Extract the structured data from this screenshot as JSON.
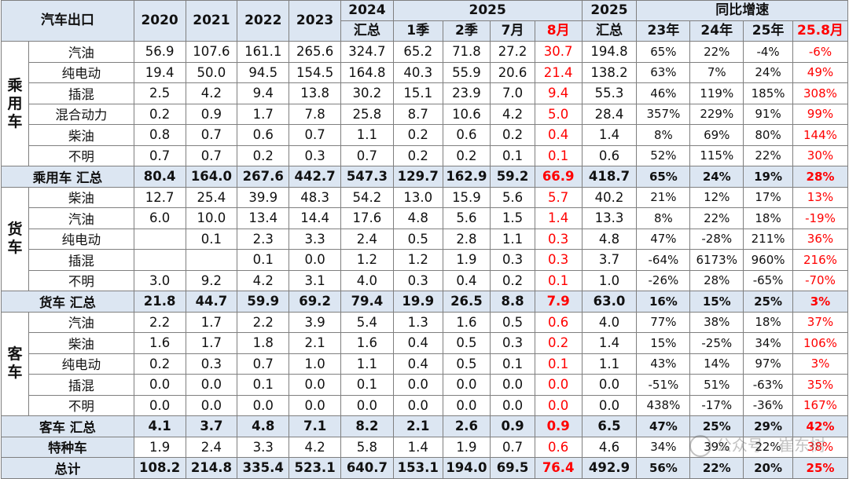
{
  "chart_data": {
    "type": "table",
    "corner_label": "汽车出口",
    "columns": [
      {
        "top": "2020",
        "bottom": ""
      },
      {
        "top": "2021",
        "bottom": ""
      },
      {
        "top": "2022",
        "bottom": ""
      },
      {
        "top": "2023",
        "bottom": ""
      },
      {
        "top": "2024",
        "bottom": "汇总"
      },
      {
        "top": "2025",
        "bottom": "1季",
        "span": 4
      },
      {
        "top": "",
        "bottom": "2季"
      },
      {
        "top": "",
        "bottom": "7月"
      },
      {
        "top": "",
        "bottom": "8月",
        "highlight": true
      },
      {
        "top": "2025",
        "bottom": "汇总"
      },
      {
        "top": "同比增速",
        "bottom": "23年",
        "span": 4
      },
      {
        "top": "",
        "bottom": "24年"
      },
      {
        "top": "",
        "bottom": "25年"
      },
      {
        "top": "",
        "bottom": "25.8月",
        "highlight": true
      }
    ],
    "highlight_color": "#ff0000",
    "total_row_color": "#dce6f2",
    "groups": [
      {
        "label": "乘用车",
        "rows": [
          {
            "name": "汽油",
            "values": [
              "56.9",
              "107.6",
              "161.1",
              "265.6",
              "324.7",
              "65.2",
              "71.8",
              "27.2",
              "30.7",
              "194.8",
              "65%",
              "22%",
              "-4%",
              "-6%"
            ]
          },
          {
            "name": "纯电动",
            "values": [
              "19.4",
              "50.0",
              "94.5",
              "154.5",
              "164.8",
              "40.3",
              "55.9",
              "20.6",
              "21.4",
              "138.2",
              "63%",
              "7%",
              "24%",
              "49%"
            ]
          },
          {
            "name": "插混",
            "values": [
              "2.5",
              "4.2",
              "9.4",
              "13.8",
              "30.2",
              "15.1",
              "23.9",
              "7.0",
              "9.4",
              "55.3",
              "46%",
              "119%",
              "185%",
              "308%"
            ]
          },
          {
            "name": "混合动力",
            "values": [
              "0.2",
              "0.9",
              "1.7",
              "7.8",
              "25.8",
              "8.7",
              "10.6",
              "4.2",
              "5.0",
              "28.4",
              "357%",
              "229%",
              "91%",
              "99%"
            ]
          },
          {
            "name": "柴油",
            "values": [
              "0.8",
              "0.7",
              "0.6",
              "0.7",
              "1.1",
              "0.2",
              "0.6",
              "0.2",
              "0.4",
              "1.4",
              "8%",
              "69%",
              "80%",
              "144%"
            ]
          },
          {
            "name": "不明",
            "values": [
              "0.7",
              "0.7",
              "0.2",
              "0.3",
              "0.7",
              "0.2",
              "0.2",
              "0.1",
              "0.1",
              "0.6",
              "52%",
              "115%",
              "22%",
              "30%"
            ]
          }
        ],
        "total": {
          "name": "乘用车 汇总",
          "values": [
            "80.4",
            "164.0",
            "267.6",
            "442.7",
            "547.3",
            "129.7",
            "162.9",
            "59.2",
            "66.9",
            "418.7",
            "65%",
            "24%",
            "19%",
            "28%"
          ]
        }
      },
      {
        "label": "货车",
        "rows": [
          {
            "name": "柴油",
            "values": [
              "12.7",
              "25.4",
              "39.9",
              "48.3",
              "54.2",
              "13.0",
              "15.9",
              "5.6",
              "5.7",
              "40.2",
              "21%",
              "12%",
              "17%",
              "13%"
            ]
          },
          {
            "name": "汽油",
            "values": [
              "6.0",
              "10.0",
              "13.4",
              "14.4",
              "17.6",
              "4.8",
              "5.6",
              "1.5",
              "1.4",
              "13.3",
              "8%",
              "22%",
              "18%",
              "-19%"
            ]
          },
          {
            "name": "纯电动",
            "values": [
              "",
              "0.1",
              "2.3",
              "3.3",
              "2.4",
              "0.5",
              "2.8",
              "1.1",
              "0.3",
              "4.8",
              "47%",
              "-28%",
              "211%",
              "36%"
            ]
          },
          {
            "name": "插混",
            "values": [
              "",
              "",
              "0.1",
              "0.0",
              "1.2",
              "1.2",
              "1.9",
              "0.3",
              "0.3",
              "3.7",
              "-64%",
              "6173%",
              "960%",
              "216%"
            ]
          },
          {
            "name": "不明",
            "values": [
              "3.0",
              "9.2",
              "4.2",
              "3.1",
              "4.0",
              "0.3",
              "0.4",
              "0.2",
              "0.1",
              "1.0",
              "-26%",
              "28%",
              "-65%",
              "-70%"
            ]
          }
        ],
        "total": {
          "name": "货车 汇总",
          "values": [
            "21.8",
            "44.7",
            "59.9",
            "69.2",
            "79.4",
            "19.9",
            "26.5",
            "8.8",
            "7.9",
            "63.0",
            "16%",
            "15%",
            "25%",
            "3%"
          ]
        }
      },
      {
        "label": "客车",
        "rows": [
          {
            "name": "汽油",
            "values": [
              "2.2",
              "1.7",
              "2.2",
              "3.9",
              "5.4",
              "1.3",
              "1.6",
              "0.5",
              "0.6",
              "4.0",
              "77%",
              "38%",
              "18%",
              "37%"
            ]
          },
          {
            "name": "柴油",
            "values": [
              "1.6",
              "1.7",
              "1.8",
              "2.1",
              "1.6",
              "0.4",
              "0.5",
              "0.3",
              "0.2",
              "1.4",
              "15%",
              "-25%",
              "34%",
              "106%"
            ]
          },
          {
            "name": "纯电动",
            "values": [
              "0.2",
              "0.3",
              "0.7",
              "1.0",
              "1.1",
              "0.4",
              "0.5",
              "0.1",
              "0.1",
              "1.1",
              "43%",
              "14%",
              "97%",
              "3%"
            ]
          },
          {
            "name": "插混",
            "values": [
              "0.0",
              "0.0",
              "0.1",
              "0.0",
              "0.1",
              "0.0",
              "0.0",
              "0.0",
              "0.0",
              "0.0",
              "-51%",
              "51%",
              "-63%",
              "35%"
            ]
          },
          {
            "name": "不明",
            "values": [
              "0.0",
              "0.0",
              "0.0",
              "0.0",
              "0.0",
              "0.0",
              "0.0",
              "0.0",
              "0.0",
              "0.0",
              "438%",
              "-17%",
              "-36%",
              "167%"
            ]
          }
        ],
        "total": {
          "name": "客车 汇总",
          "values": [
            "4.1",
            "3.7",
            "4.8",
            "7.1",
            "8.2",
            "2.1",
            "2.6",
            "0.9",
            "0.9",
            "6.5",
            "47%",
            "25%",
            "29%",
            "42%"
          ]
        }
      }
    ],
    "standalone_rows": [
      {
        "name": "特种车",
        "style": "plain",
        "values": [
          "1.9",
          "2.4",
          "3.3",
          "4.2",
          "5.8",
          "1.4",
          "1.9",
          "0.7",
          "0.6",
          "4.6",
          "34%",
          "39%",
          "22%",
          "38%"
        ]
      },
      {
        "name": "总计",
        "style": "total",
        "values": [
          "108.2",
          "214.8",
          "335.4",
          "523.1",
          "640.7",
          "153.1",
          "194.0",
          "69.5",
          "76.4",
          "492.9",
          "56%",
          "22%",
          "20%",
          "25%"
        ]
      }
    ]
  },
  "watermark": {
    "text": "公众号 · 崔东树",
    "icon": "wechat-icon"
  }
}
